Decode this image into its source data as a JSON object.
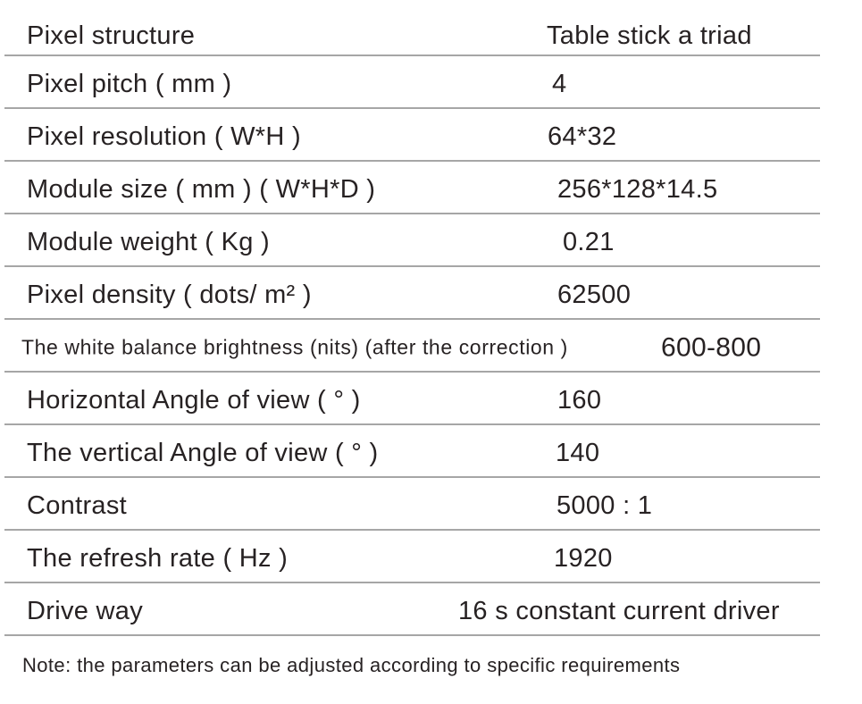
{
  "table": {
    "rows": [
      {
        "label": "Pixel structure",
        "value": "Table stick a triad"
      },
      {
        "label": "Pixel pitch ( mm )",
        "value": "4"
      },
      {
        "label": "Pixel resolution ( W*H )",
        "value": "64*32"
      },
      {
        "label": "Module size ( mm )  ( W*H*D )",
        "value": "256*128*14.5"
      },
      {
        "label": "Module weight ( Kg )",
        "value": "0.21"
      },
      {
        "label": "Pixel density ( dots/ m² )",
        "value": "62500"
      },
      {
        "label": "The white balance brightness (nits) (after the correction )",
        "value": "600-800"
      },
      {
        "label": "Horizontal Angle of view ( ° )",
        "value": "160"
      },
      {
        "label": "The vertical Angle of view ( ° )",
        "value": "140"
      },
      {
        "label": "Contrast",
        "value": "5000 : 1"
      },
      {
        "label": "The refresh rate ( Hz )",
        "value": "1920"
      },
      {
        "label": "Drive way",
        "value": "16 s constant current driver"
      }
    ],
    "note": "Note: the parameters can be adjusted according to specific requirements"
  },
  "colors": {
    "background": "#ffffff",
    "text": "#272223",
    "divider": "#a6a6a6"
  }
}
